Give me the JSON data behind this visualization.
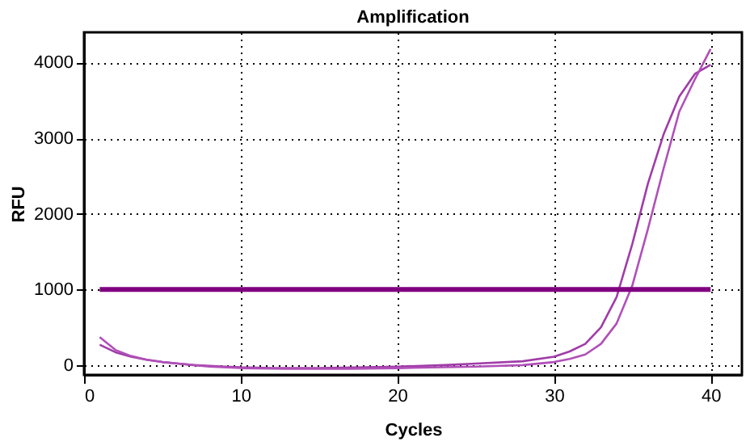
{
  "chart_data": {
    "type": "line",
    "title": "Amplification",
    "xlabel": "Cycles",
    "ylabel": "RFU",
    "xlim": [
      0,
      42
    ],
    "xticks": [
      0,
      10,
      20,
      30,
      40
    ],
    "ylim": [
      -130,
      4400
    ],
    "yticks": [
      0,
      1000,
      2000,
      3000,
      4000
    ],
    "grid": true,
    "line_style": "solid",
    "marker": "none",
    "series": [
      {
        "color": "#a03ca8",
        "x": [
          1,
          2,
          3,
          4,
          5,
          6,
          7,
          8,
          9,
          10,
          12,
          15,
          18,
          20,
          23,
          25,
          28,
          30,
          31,
          32,
          33,
          34,
          35,
          36,
          37,
          38,
          39,
          40
        ],
        "values": [
          270,
          170,
          110,
          70,
          40,
          20,
          0,
          -10,
          -20,
          -30,
          -40,
          -40,
          -30,
          -20,
          0,
          20,
          50,
          110,
          180,
          280,
          500,
          900,
          1600,
          2400,
          3050,
          3550,
          3850,
          3970
        ]
      },
      {
        "color": "#b050b8",
        "x": [
          1,
          2,
          3,
          4,
          5,
          6,
          8,
          10,
          13,
          17,
          20,
          25,
          28,
          30,
          31,
          32,
          33,
          34,
          35,
          36,
          37,
          38,
          39,
          40
        ],
        "values": [
          370,
          200,
          120,
          70,
          40,
          20,
          -20,
          -40,
          -50,
          -50,
          -40,
          -20,
          0,
          40,
          80,
          140,
          280,
          550,
          1050,
          1800,
          2600,
          3350,
          3780,
          4180
        ]
      },
      {
        "color": "#800080",
        "x": [
          1,
          40
        ],
        "values": [
          1000,
          1000
        ]
      }
    ]
  }
}
